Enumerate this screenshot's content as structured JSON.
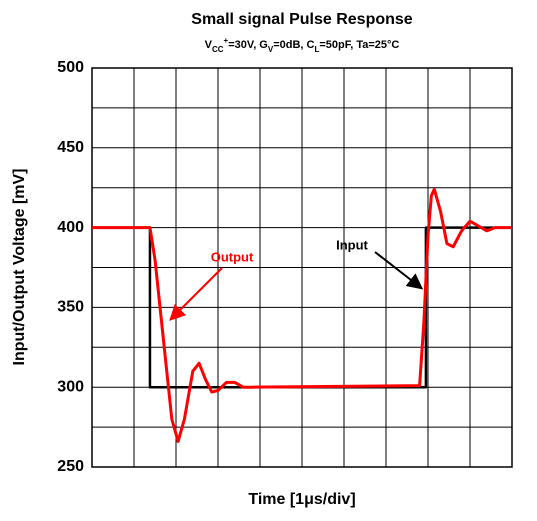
{
  "chart_data": {
    "type": "line",
    "title": "Small signal Pulse Response",
    "subtitle": [
      {
        "text": "V"
      },
      {
        "text": "CC",
        "shift": "sub"
      },
      {
        "text": "+",
        "shift": "sup"
      },
      {
        "text": "=30V, G"
      },
      {
        "text": "V",
        "shift": "sub"
      },
      {
        "text": "=0dB, C"
      },
      {
        "text": "L",
        "shift": "sub"
      },
      {
        "text": "=50pF, Ta=25°C"
      }
    ],
    "xlabel": "Time [1μs/div]",
    "ylabel": "Input/Output Voltage [mV]",
    "xlim": [
      0,
      10
    ],
    "xticks": [
      0,
      1,
      2,
      3,
      4,
      5,
      6,
      7,
      8,
      9,
      10
    ],
    "ylim": [
      250,
      500
    ],
    "yticks": [
      250,
      300,
      350,
      400,
      450,
      500
    ],
    "minor_yticks": [
      275,
      325,
      375,
      425,
      475
    ],
    "grid": true,
    "series": [
      {
        "name": "Input",
        "color": "#000000",
        "x": [
          0,
          1.38,
          1.38,
          7.95,
          7.95,
          10
        ],
        "values": [
          400,
          400,
          300,
          300,
          400,
          400
        ]
      },
      {
        "name": "Output",
        "color": "#ff0000",
        "x": [
          0,
          1.38,
          1.5,
          1.7,
          1.9,
          2.05,
          2.2,
          2.4,
          2.55,
          2.7,
          2.85,
          3.0,
          3.2,
          3.4,
          3.6,
          3.8,
          7.8,
          7.9,
          8.0,
          8.08,
          8.15,
          8.3,
          8.45,
          8.6,
          8.8,
          9.0,
          9.2,
          9.4,
          9.6,
          10
        ],
        "values": [
          400,
          400,
          380,
          330,
          280,
          266,
          280,
          310,
          315,
          305,
          297,
          298,
          303,
          303,
          300,
          300,
          301,
          340,
          395,
          420,
          424,
          410,
          390,
          388,
          398,
          404,
          401,
          398,
          400,
          400
        ]
      }
    ],
    "annotations": [
      {
        "text": "Output",
        "color": "#ff0000"
      },
      {
        "text": "Input",
        "color": "#000000"
      }
    ]
  }
}
